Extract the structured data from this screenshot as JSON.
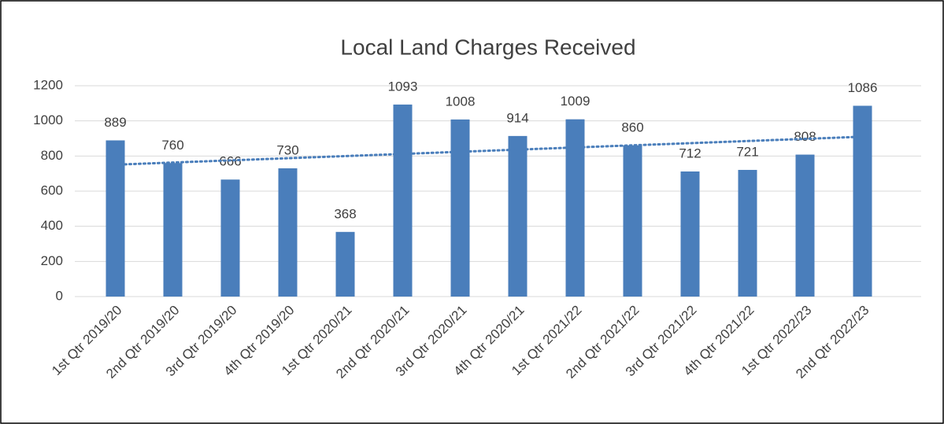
{
  "chart_data": {
    "type": "bar",
    "title": "Local Land Charges Received",
    "categories": [
      "1st Qtr 2019/20",
      "2nd Qtr 2019/20",
      "3rd Qtr 2019/20",
      "4th Qtr 2019/20",
      "1st Qtr 2020/21",
      "2nd Qtr 2020/21",
      "3rd Qtr 2020/21",
      "4th Qtr 2020/21",
      "1st Qtr 2021/22",
      "2nd Qtr 2021/22",
      "3rd Qtr 2021/22",
      "4th Qtr 2021/22",
      "1st Qtr 2022/23",
      "2nd Qtr 2022/23"
    ],
    "values": [
      889,
      760,
      666,
      730,
      368,
      1093,
      1008,
      914,
      1009,
      860,
      712,
      721,
      808,
      1086
    ],
    "color": "#4a7ebb",
    "ylim": [
      0,
      1200
    ],
    "yticks": [
      0,
      200,
      400,
      600,
      800,
      1000,
      1200
    ],
    "grid": true,
    "data_labels": true,
    "trendline": "linear"
  }
}
